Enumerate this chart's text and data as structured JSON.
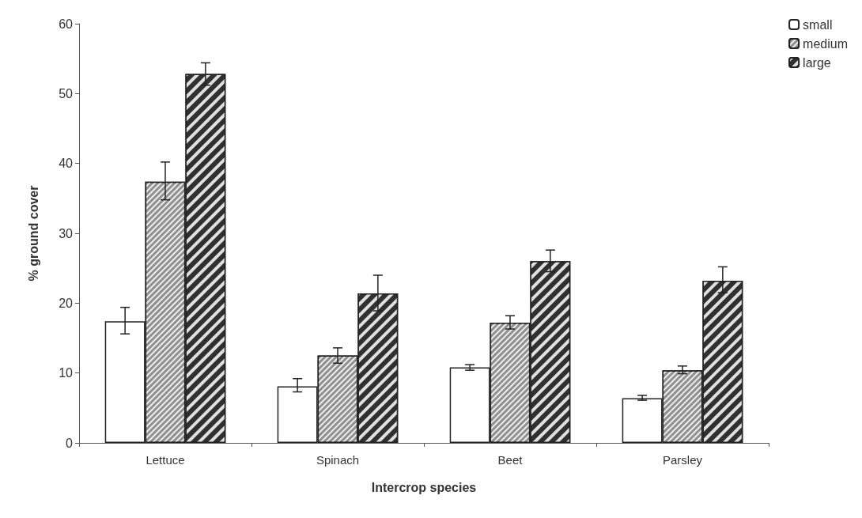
{
  "chart_data": {
    "type": "bar",
    "xlabel": "Intercrop species",
    "ylabel": "% ground cover",
    "categories": [
      "Lettuce",
      "Spinach",
      "Beet",
      "Parsley"
    ],
    "series": [
      {
        "name": "small",
        "color": "#ffffff",
        "values": [
          17.4,
          8.1,
          10.8,
          6.4
        ],
        "errors": [
          [
            15.6,
            19.4
          ],
          [
            7.3,
            9.2
          ],
          [
            10.4,
            11.2
          ],
          [
            6.1,
            6.8
          ]
        ]
      },
      {
        "name": "medium",
        "color": "#909090",
        "values": [
          37.4,
          12.5,
          17.2,
          10.4
        ],
        "errors": [
          [
            34.8,
            40.2
          ],
          [
            11.4,
            13.6
          ],
          [
            16.3,
            18.2
          ],
          [
            9.9,
            11.0
          ]
        ]
      },
      {
        "name": "large",
        "color": "#303030",
        "values": [
          52.8,
          21.4,
          26.0,
          23.2
        ],
        "errors": [
          [
            51.2,
            54.4
          ],
          [
            18.9,
            24.0
          ],
          [
            24.5,
            27.6
          ],
          [
            21.5,
            25.2
          ]
        ]
      }
    ],
    "ylim": [
      0,
      60
    ],
    "yticks": [
      0,
      10,
      20,
      30,
      40,
      50,
      60
    ],
    "grid": false,
    "legend": "top right"
  }
}
